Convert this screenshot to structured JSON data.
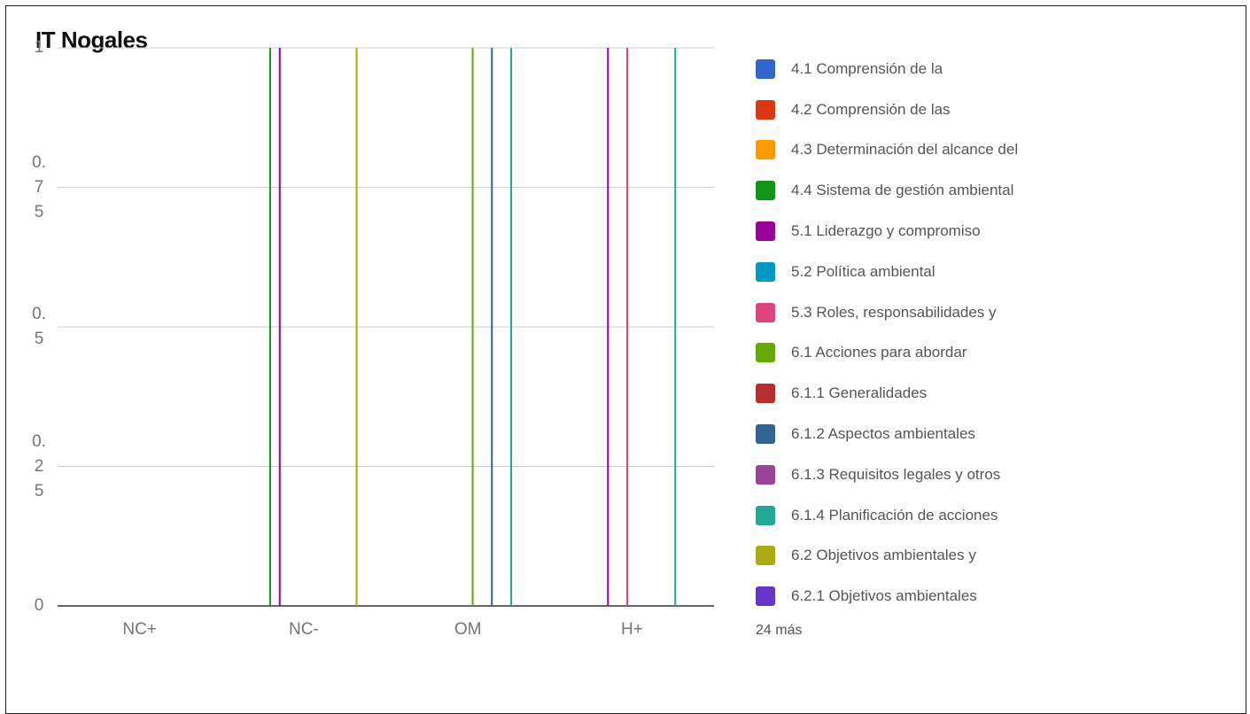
{
  "chart_data": {
    "type": "bar",
    "title": "IT Nogales",
    "categories": [
      "NC+",
      "NC-",
      "OM",
      "H+"
    ],
    "yticks": [
      "0",
      "0.\n2\n5",
      "0.\n5",
      "0.\n7\n5",
      "1"
    ],
    "ylim": [
      0,
      1
    ],
    "grid": true,
    "legend_position": "right",
    "legend_more": "24 más",
    "series": [
      {
        "name": "4.1 Comprensión de la",
        "color": "#3366cc",
        "values": [
          0,
          0,
          0,
          0
        ]
      },
      {
        "name": "4.2 Comprensión de las",
        "color": "#dc3912",
        "values": [
          0,
          0,
          0,
          0
        ]
      },
      {
        "name": "4.3 Determinación del alcance del",
        "color": "#ff9900",
        "values": [
          0,
          0,
          0,
          0
        ]
      },
      {
        "name": "4.4 Sistema de gestión ambiental",
        "color": "#109618",
        "values": [
          0,
          1,
          0,
          0
        ]
      },
      {
        "name": "5.1 Liderazgo y compromiso",
        "color": "#990099",
        "values": [
          0,
          1,
          0,
          1
        ]
      },
      {
        "name": "5.2 Política ambiental",
        "color": "#0099c6",
        "values": [
          0,
          0,
          0,
          0
        ]
      },
      {
        "name": "5.3 Roles, responsabilidades y",
        "color": "#dd4477",
        "values": [
          0,
          0,
          0,
          1
        ]
      },
      {
        "name": "6.1 Acciones para abordar",
        "color": "#66aa00",
        "values": [
          0,
          0,
          1,
          0
        ]
      },
      {
        "name": "6.1.1 Generalidades",
        "color": "#b82e2e",
        "values": [
          0,
          0,
          0,
          0
        ]
      },
      {
        "name": "6.1.2 Aspectos ambientales",
        "color": "#316395",
        "values": [
          0,
          0,
          1,
          0
        ]
      },
      {
        "name": "6.1.3 Requisitos legales y otros",
        "color": "#994499",
        "values": [
          0,
          0,
          0,
          0
        ]
      },
      {
        "name": "6.1.4 Planificación de acciones",
        "color": "#22aa99",
        "values": [
          0,
          0,
          1,
          1
        ]
      },
      {
        "name": "6.2 Objetivos ambientales y",
        "color": "#aaaa11",
        "values": [
          0,
          1,
          0,
          0
        ]
      },
      {
        "name": "6.2.1 Objetivos ambientales",
        "color": "#6633cc",
        "values": [
          0,
          0,
          0,
          0
        ]
      }
    ]
  }
}
